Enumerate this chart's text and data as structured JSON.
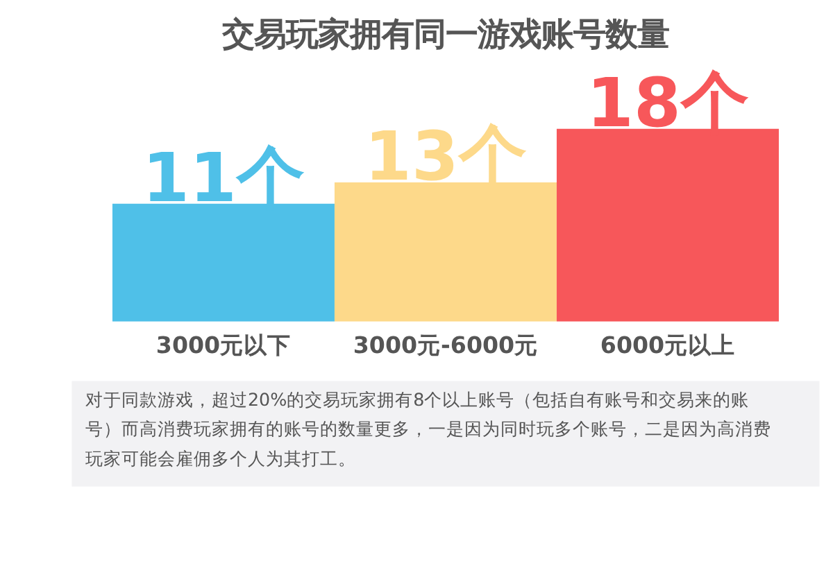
{
  "chart_data": {
    "type": "bar",
    "title": "交易玩家拥有同一游戏账号数量",
    "categories": [
      "3000元以下",
      "3000元-6000元",
      "6000元以上"
    ],
    "values": [
      11,
      13,
      18
    ],
    "colors": [
      "#4fc0e8",
      "#fdd98a",
      "#f7575a"
    ],
    "value_labels": [
      "11个",
      "13个",
      "18个"
    ],
    "annotations": [
      "对于同款游戏，超过20%的交易玩家拥有8个以上账号（包括自有账号和交易来的账号）而高消费玩家拥有的账号的数量更多，一是因为同时玩多个账号，二是因为高消费玩家可能会雇佣多个人为其打工。"
    ]
  }
}
